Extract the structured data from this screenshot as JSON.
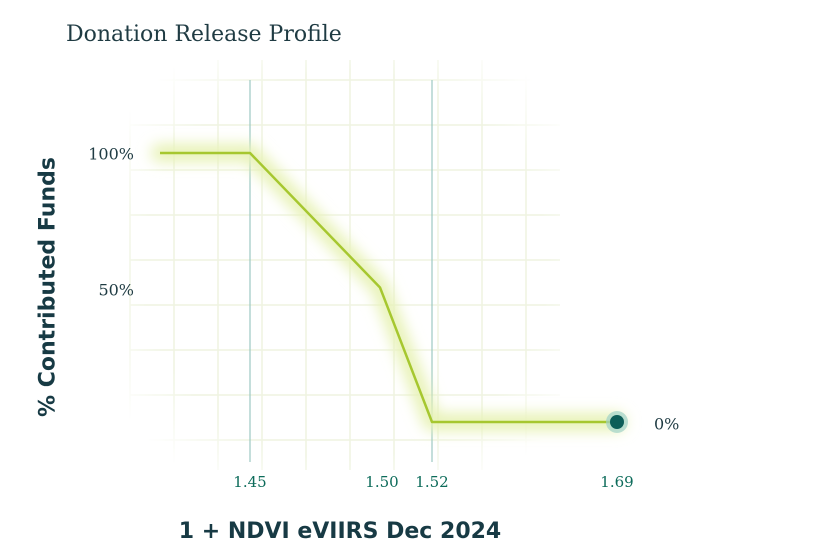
{
  "chart_data": {
    "type": "line",
    "title": "Donation Release Profile",
    "xlabel": "1 + NDVI eVIIRS Dec 2024",
    "ylabel": "% Contributed Funds",
    "x": [
      1.45,
      1.5,
      1.52,
      1.69
    ],
    "series": [
      {
        "values": [
          100,
          50,
          0,
          0
        ]
      }
    ],
    "flat_start_value": 100,
    "x_ticks": [
      "1.45",
      "1.50",
      "1.52",
      "1.69"
    ],
    "y_ticks": [
      {
        "value": 100,
        "label": "100%"
      },
      {
        "value": 50,
        "label": "50%"
      }
    ],
    "end_marker": {
      "x": 1.69,
      "y": 0
    },
    "end_label": "0%",
    "grid": true,
    "colors": {
      "line": "#a6c72f",
      "glow": "#e7f2b5",
      "marker": "#0d5e58",
      "marker_ring": "#9fd1c6",
      "vline": "#9cc8c3",
      "grid": "#eff4e1"
    }
  }
}
